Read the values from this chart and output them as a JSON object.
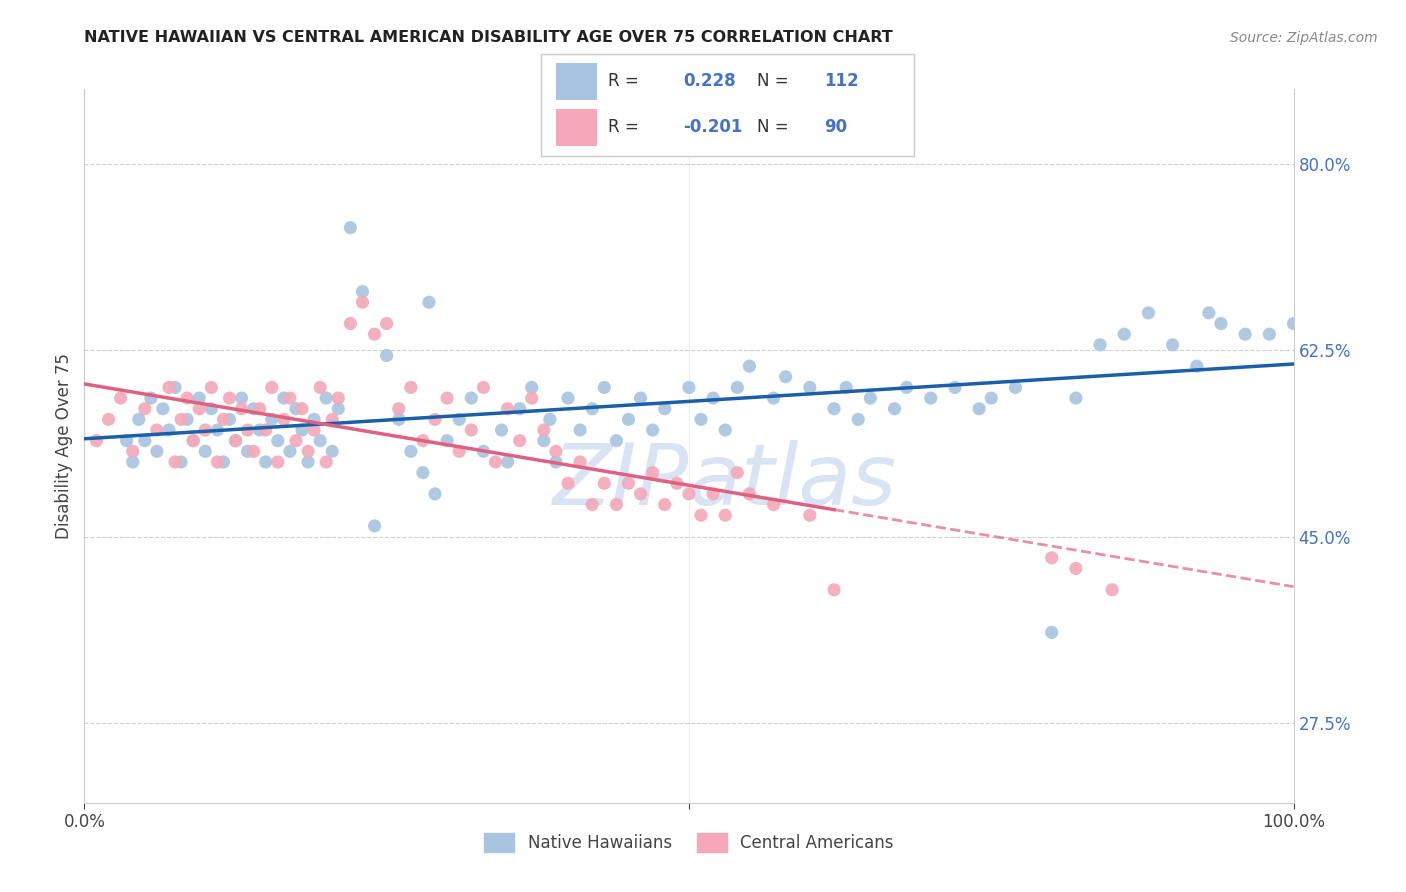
{
  "title": "NATIVE HAWAIIAN VS CENTRAL AMERICAN DISABILITY AGE OVER 75 CORRELATION CHART",
  "source": "Source: ZipAtlas.com",
  "ylabel": "Disability Age Over 75",
  "r_blue": 0.228,
  "n_blue": 112,
  "r_pink": -0.201,
  "n_pink": 90,
  "blue_color": "#a8c4e0",
  "pink_color": "#f4a8b8",
  "blue_line_color": "#1a5fa8",
  "pink_line_color": "#e06080",
  "legend_label_blue": "Native Hawaiians",
  "legend_label_pink": "Central Americans",
  "yticks": [
    27.5,
    45.0,
    62.5,
    80.0
  ],
  "ytick_labels": [
    "27.5%",
    "45.0%",
    "62.5%",
    "80.0%"
  ],
  "background_color": "#ffffff",
  "grid_color": "#dddddd",
  "watermark_color": "#c8d8ee",
  "blue_x": [
    3.5,
    4.0,
    4.5,
    5.0,
    5.5,
    6.0,
    6.5,
    7.0,
    7.5,
    8.0,
    8.5,
    9.0,
    9.5,
    10.0,
    10.5,
    11.0,
    11.5,
    12.0,
    12.5,
    13.0,
    13.5,
    14.0,
    14.5,
    15.0,
    15.5,
    16.0,
    16.5,
    17.0,
    17.5,
    18.0,
    18.5,
    19.0,
    19.5,
    20.0,
    20.5,
    21.0,
    22.0,
    23.0,
    24.0,
    25.0,
    26.0,
    27.0,
    28.0,
    28.5,
    29.0,
    30.0,
    31.0,
    32.0,
    33.0,
    34.5,
    35.0,
    36.0,
    37.0,
    38.0,
    38.5,
    39.0,
    40.0,
    41.0,
    42.0,
    43.0,
    44.0,
    45.0,
    46.0,
    47.0,
    48.0,
    50.0,
    51.0,
    52.0,
    53.0,
    54.0,
    55.0,
    57.0,
    58.0,
    60.0,
    62.0,
    63.0,
    64.0,
    65.0,
    67.0,
    68.0,
    70.0,
    72.0,
    74.0,
    75.0,
    77.0,
    80.0,
    82.0,
    84.0,
    86.0,
    88.0,
    90.0,
    92.0,
    93.0,
    94.0,
    96.0,
    98.0,
    100.0
  ],
  "blue_y": [
    54,
    52,
    56,
    54,
    58,
    53,
    57,
    55,
    59,
    52,
    56,
    54,
    58,
    53,
    57,
    55,
    52,
    56,
    54,
    58,
    53,
    57,
    55,
    52,
    56,
    54,
    58,
    53,
    57,
    55,
    52,
    56,
    54,
    58,
    53,
    57,
    74,
    68,
    46,
    62,
    56,
    53,
    51,
    67,
    49,
    54,
    56,
    58,
    53,
    55,
    52,
    57,
    59,
    54,
    56,
    52,
    58,
    55,
    57,
    59,
    54,
    56,
    58,
    55,
    57,
    59,
    56,
    58,
    55,
    59,
    61,
    58,
    60,
    59,
    57,
    59,
    56,
    58,
    57,
    59,
    58,
    59,
    57,
    58,
    59,
    36,
    58,
    63,
    64,
    66,
    63,
    61,
    66,
    65,
    64,
    64,
    65
  ],
  "pink_x": [
    1.0,
    2.0,
    3.0,
    4.0,
    5.0,
    6.0,
    7.0,
    7.5,
    8.0,
    8.5,
    9.0,
    9.5,
    10.0,
    10.5,
    11.0,
    11.5,
    12.0,
    12.5,
    13.0,
    13.5,
    14.0,
    14.5,
    15.0,
    15.5,
    16.0,
    16.5,
    17.0,
    17.5,
    18.0,
    18.5,
    19.0,
    19.5,
    20.0,
    20.5,
    21.0,
    22.0,
    23.0,
    24.0,
    25.0,
    26.0,
    27.0,
    28.0,
    29.0,
    30.0,
    31.0,
    32.0,
    33.0,
    34.0,
    35.0,
    36.0,
    37.0,
    38.0,
    39.0,
    40.0,
    41.0,
    42.0,
    43.0,
    44.0,
    45.0,
    46.0,
    47.0,
    48.0,
    49.0,
    50.0,
    51.0,
    52.0,
    53.0,
    54.0,
    55.0,
    57.0,
    60.0,
    62.0,
    80.0,
    82.0,
    85.0
  ],
  "pink_y": [
    54,
    56,
    58,
    53,
    57,
    55,
    59,
    52,
    56,
    58,
    54,
    57,
    55,
    59,
    52,
    56,
    58,
    54,
    57,
    55,
    53,
    57,
    55,
    59,
    52,
    56,
    58,
    54,
    57,
    53,
    55,
    59,
    52,
    56,
    58,
    65,
    67,
    64,
    65,
    57,
    59,
    54,
    56,
    58,
    53,
    55,
    59,
    52,
    57,
    54,
    58,
    55,
    53,
    50,
    52,
    48,
    50,
    48,
    50,
    49,
    51,
    48,
    50,
    49,
    47,
    49,
    47,
    51,
    49,
    48,
    47,
    40,
    43,
    42,
    40
  ]
}
